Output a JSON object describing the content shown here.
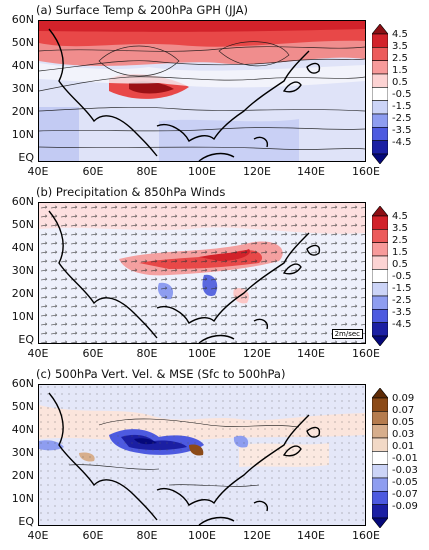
{
  "panels": [
    {
      "title": "(a) Surface Temp & 200hPa GPH (JJA)",
      "colorbar": [
        "4.5",
        "3.5",
        "2.5",
        "1.5",
        "0.5",
        "-0.5",
        "-1.5",
        "-2.5",
        "-3.5",
        "-4.5"
      ],
      "palette": [
        "#8c0f14",
        "#d2222a",
        "#ec5a5a",
        "#f79a9a",
        "#fcd3d3",
        "#ffffff",
        "#ccd4f7",
        "#8e9df0",
        "#4d5ae0",
        "#1b1fa3",
        "#05087a"
      ]
    },
    {
      "title": "(b) Precipitation & 850hPa Winds",
      "colorbar": [
        "4.5",
        "3.5",
        "2.5",
        "1.5",
        "0.5",
        "-0.5",
        "-1.5",
        "-2.5",
        "-3.5",
        "-4.5"
      ],
      "palette": [
        "#8c0f14",
        "#d2222a",
        "#ec5a5a",
        "#f79a9a",
        "#fcd3d3",
        "#ffffff",
        "#ccd4f7",
        "#8e9df0",
        "#4d5ae0",
        "#1b1fa3",
        "#05087a"
      ],
      "scale_label": "2m/sec"
    },
    {
      "title": "(c) 500hPa Vert. Vel. & MSE (Sfc to 500hPa)",
      "colorbar": [
        "0.09",
        "0.07",
        "0.05",
        "0.03",
        "0.01",
        "-0.01",
        "-0.03",
        "-0.05",
        "-0.07",
        "-0.09"
      ],
      "palette": [
        "#5e2b06",
        "#8c4a17",
        "#b57c4e",
        "#d7ae8c",
        "#f2d9c6",
        "#ffffff",
        "#ccd4f7",
        "#8e9df0",
        "#4d5ae0",
        "#1b1fa3",
        "#05087a"
      ]
    }
  ],
  "lat_labels": [
    "60N",
    "50N",
    "40N",
    "30N",
    "20N",
    "10N",
    "EQ"
  ],
  "lon_labels": [
    "40E",
    "60E",
    "80E",
    "100E",
    "120E",
    "140E",
    "160E"
  ]
}
